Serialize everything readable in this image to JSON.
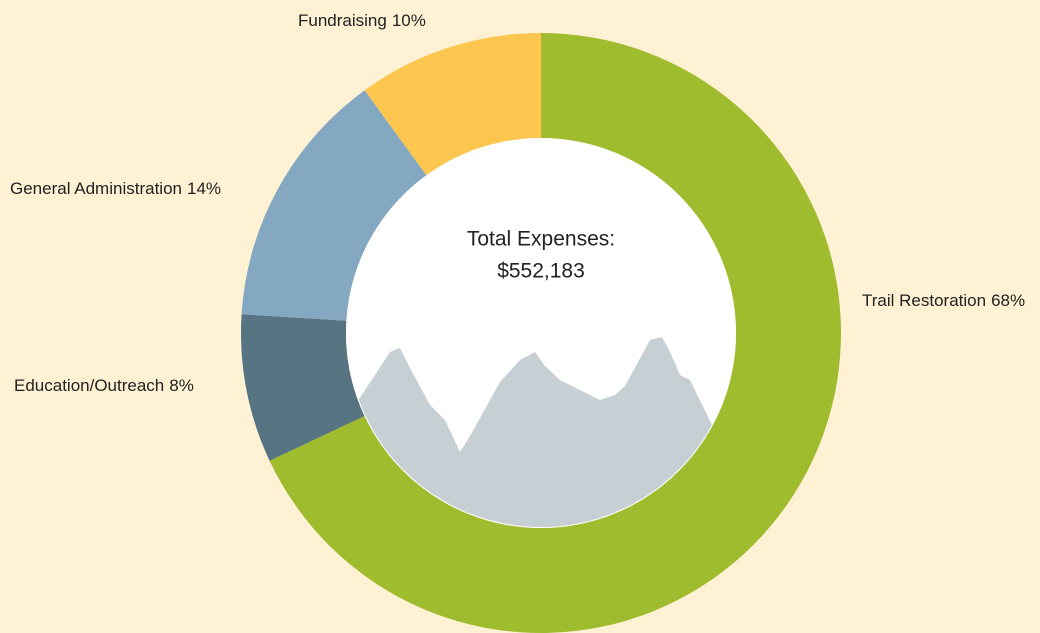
{
  "chart_data": {
    "type": "donut",
    "categories": [
      "Trail Restoration",
      "Education/Outreach",
      "General Administration",
      "Fundraising"
    ],
    "values": [
      68,
      8,
      14,
      10
    ],
    "value_labels": [
      "68%",
      "8%",
      "14%",
      "10%"
    ],
    "colors": [
      "#9fbb2e",
      "#577482",
      "#84a7c2",
      "#fdc64e"
    ],
    "center_text": [
      "Total Expenses:",
      "$552,183"
    ]
  }
}
